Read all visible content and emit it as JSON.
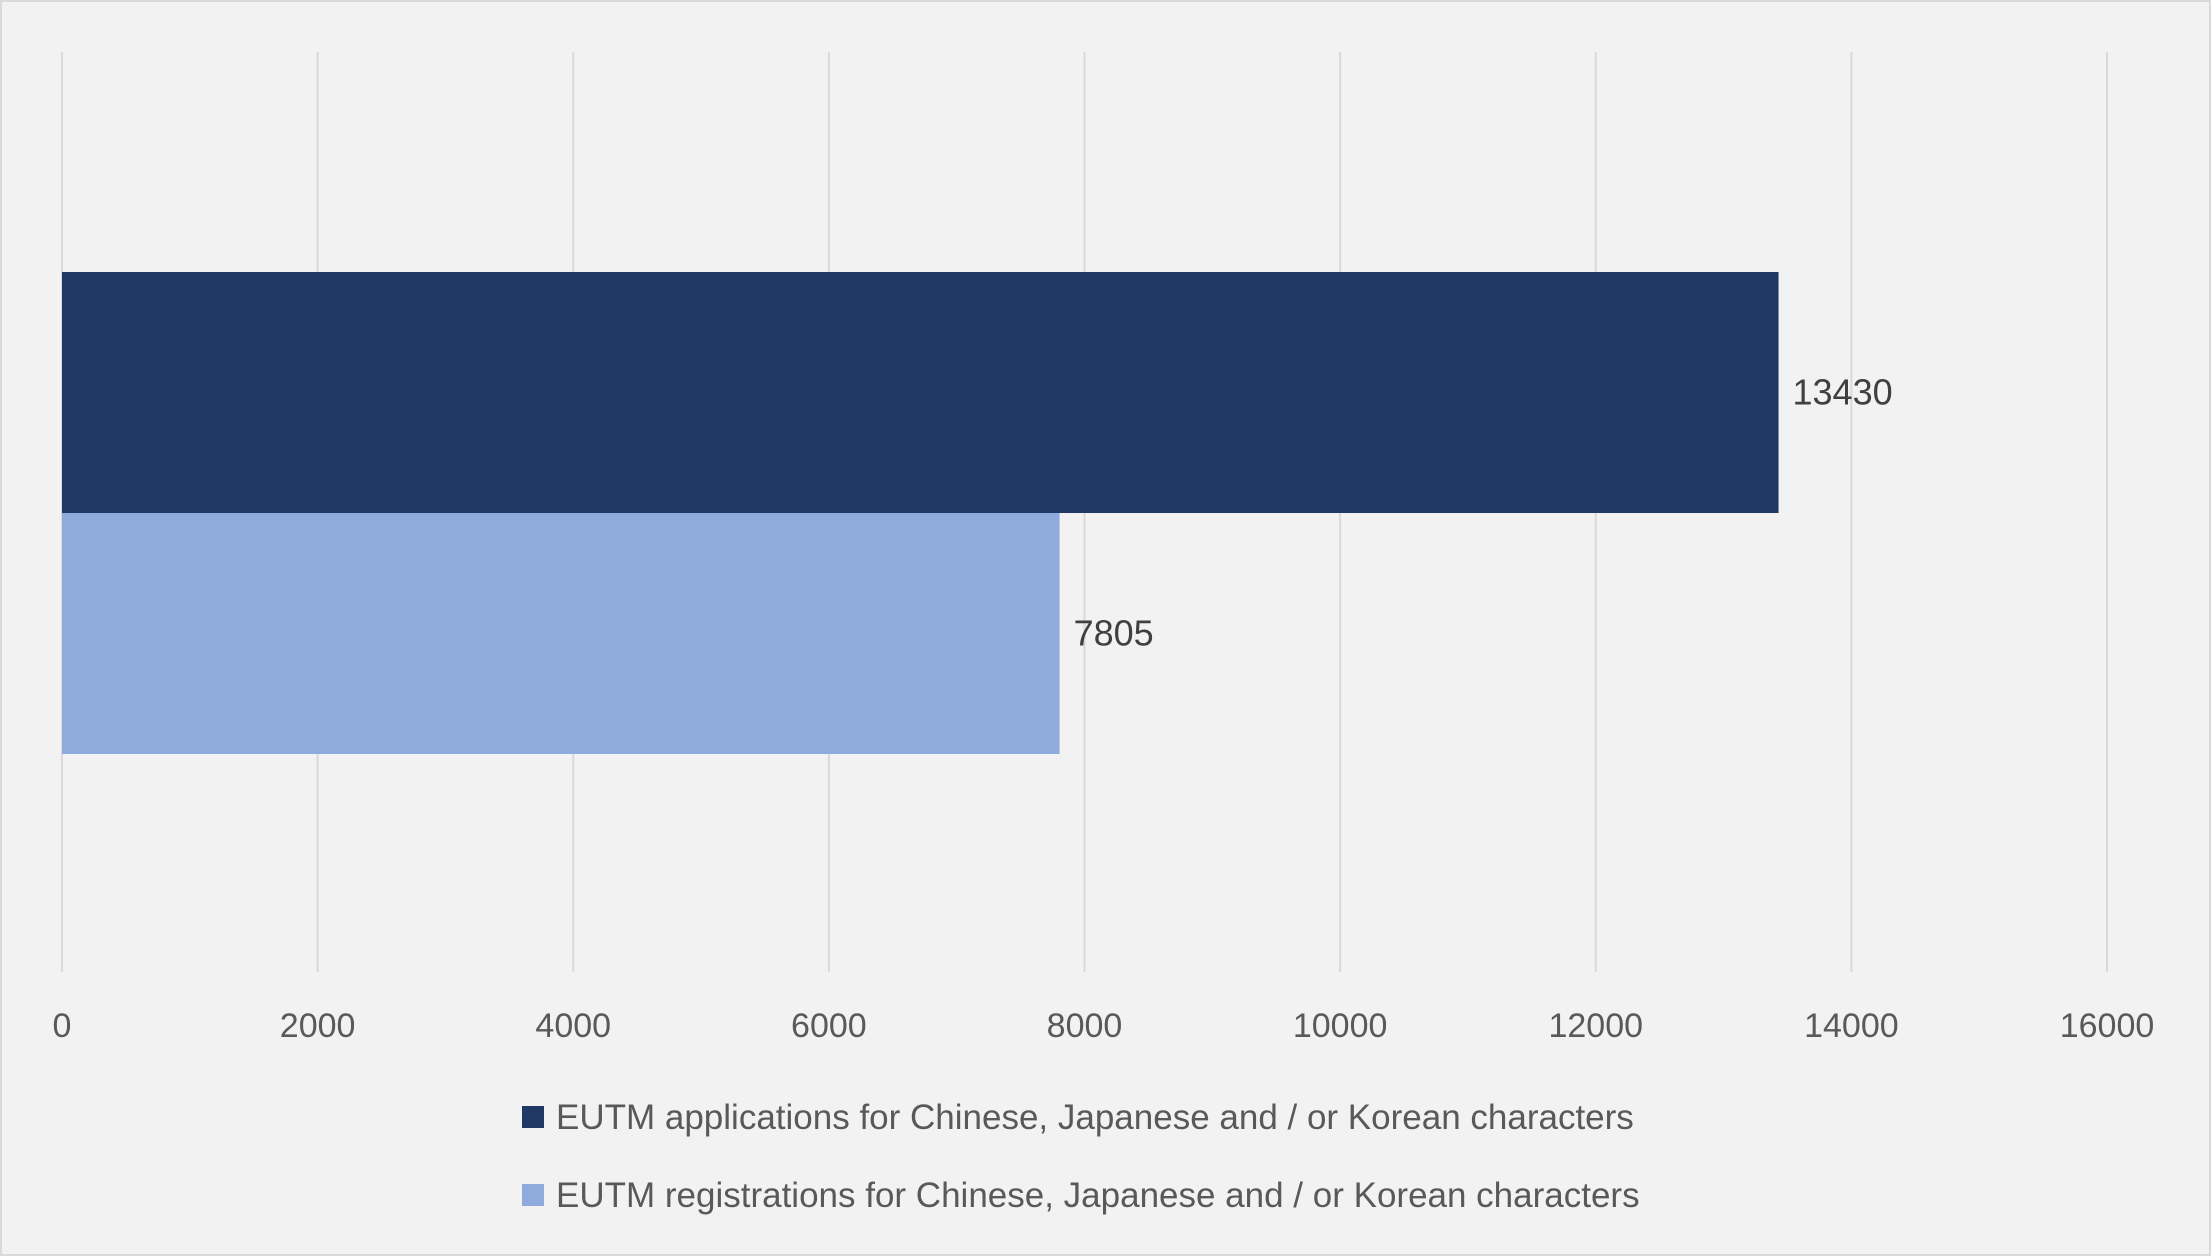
{
  "chart_data": {
    "type": "bar",
    "orientation": "horizontal",
    "categories": [
      ""
    ],
    "series": [
      {
        "name": "EUTM applications for Chinese, Japanese and / or Korean characters",
        "values": [
          13430
        ],
        "color": "#203864"
      },
      {
        "name": "EUTM registrations for Chinese, Japanese and / or Korean characters",
        "values": [
          7805
        ],
        "color": "#8faadc"
      }
    ],
    "data_labels": [
      "13430",
      "7805"
    ],
    "title": "",
    "xlabel": "",
    "ylabel": "",
    "xlim": [
      0,
      16000
    ],
    "x_ticks": [
      0,
      2000,
      4000,
      6000,
      8000,
      10000,
      12000,
      14000,
      16000
    ],
    "x_tick_labels": [
      "0",
      "2000",
      "4000",
      "6000",
      "8000",
      "10000",
      "12000",
      "14000",
      "16000"
    ],
    "grid": true,
    "legend_position": "bottom",
    "background_color": "#f2f2f2",
    "gridline_color": "#d9d9d9"
  }
}
